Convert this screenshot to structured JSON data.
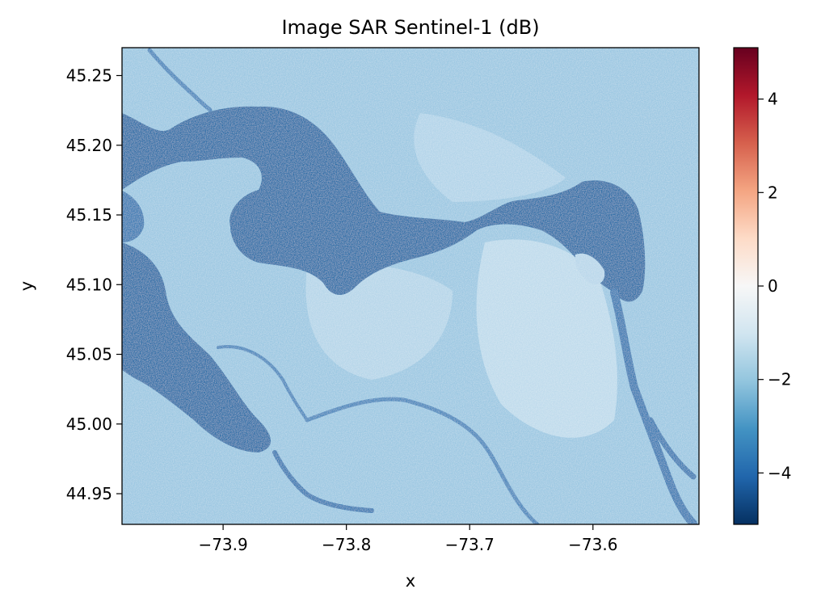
{
  "chart_data": {
    "type": "heatmap",
    "title": "Image SAR Sentinel-1 (dB)",
    "xlabel": "x",
    "ylabel": "y",
    "xlim": [
      -73.982,
      -73.514
    ],
    "ylim": [
      44.928,
      45.27
    ],
    "xticks": [
      {
        "value": -73.9,
        "label": "−73.9"
      },
      {
        "value": -73.8,
        "label": "−73.8"
      },
      {
        "value": -73.7,
        "label": "−73.7"
      },
      {
        "value": -73.6,
        "label": "−73.6"
      }
    ],
    "yticks": [
      {
        "value": 44.95,
        "label": "44.95"
      },
      {
        "value": 45.0,
        "label": "45.00"
      },
      {
        "value": 45.05,
        "label": "45.05"
      },
      {
        "value": 45.1,
        "label": "45.10"
      },
      {
        "value": 45.15,
        "label": "45.15"
      },
      {
        "value": 45.2,
        "label": "45.20"
      },
      {
        "value": 45.25,
        "label": "45.25"
      }
    ],
    "colormap": "RdBu_r",
    "colorbar": {
      "range": [
        -5.1,
        5.1
      ],
      "ticks": [
        {
          "value": 4,
          "label": "4"
        },
        {
          "value": 2,
          "label": "2"
        },
        {
          "value": 0,
          "label": "0"
        },
        {
          "value": -2,
          "label": "−2"
        },
        {
          "value": -4,
          "label": "−4"
        }
      ],
      "stops": [
        "#053061",
        "#2166ac",
        "#4393c3",
        "#92c5de",
        "#d1e5f0",
        "#f7f7f7",
        "#fddbc7",
        "#f4a582",
        "#d6604d",
        "#b2182b",
        "#67001f"
      ]
    },
    "image_colors": {
      "land": "#9cc8e2",
      "water": "#2e6fa8",
      "bright": "#cfe4f1"
    }
  }
}
